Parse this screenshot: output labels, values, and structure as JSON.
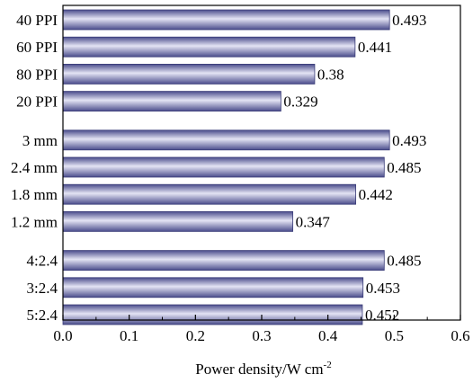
{
  "chart_data": {
    "type": "bar",
    "orientation": "horizontal",
    "xlabel": "Power density/W cm",
    "xlabel_superscript": "-2",
    "xlim": [
      0.0,
      0.6
    ],
    "xticks": [
      "0.0",
      "0.1",
      "0.2",
      "0.3",
      "0.4",
      "0.5",
      "0.6"
    ],
    "grid": false,
    "bar_color": "#7d7fb8",
    "groups": [
      {
        "bars": [
          {
            "label": "40 PPI",
            "value": 0.493,
            "value_text": "0.493"
          },
          {
            "label": "60 PPI",
            "value": 0.441,
            "value_text": "0.441"
          },
          {
            "label": "80 PPI",
            "value": 0.38,
            "value_text": "0.38"
          },
          {
            "label": "20 PPI",
            "value": 0.329,
            "value_text": "0.329"
          }
        ]
      },
      {
        "bars": [
          {
            "label": "3 mm",
            "value": 0.493,
            "value_text": "0.493"
          },
          {
            "label": "2.4 mm",
            "value": 0.485,
            "value_text": "0.485"
          },
          {
            "label": "1.8 mm",
            "value": 0.442,
            "value_text": "0.442"
          },
          {
            "label": "1.2 mm",
            "value": 0.347,
            "value_text": "0.347"
          }
        ]
      },
      {
        "bars": [
          {
            "label": "4:2.4",
            "value": 0.485,
            "value_text": "0.485"
          },
          {
            "label": "3:2.4",
            "value": 0.453,
            "value_text": "0.453"
          },
          {
            "label": "5:2.4",
            "value": 0.452,
            "value_text": "0.452"
          }
        ]
      }
    ]
  }
}
